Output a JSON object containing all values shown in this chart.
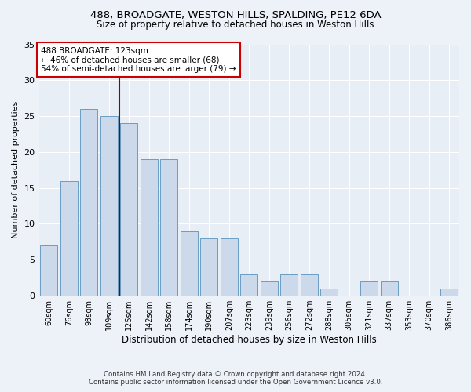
{
  "title1": "488, BROADGATE, WESTON HILLS, SPALDING, PE12 6DA",
  "title2": "Size of property relative to detached houses in Weston Hills",
  "xlabel": "Distribution of detached houses by size in Weston Hills",
  "ylabel": "Number of detached properties",
  "categories": [
    "60sqm",
    "76sqm",
    "93sqm",
    "109sqm",
    "125sqm",
    "142sqm",
    "158sqm",
    "174sqm",
    "190sqm",
    "207sqm",
    "223sqm",
    "239sqm",
    "256sqm",
    "272sqm",
    "288sqm",
    "305sqm",
    "321sqm",
    "337sqm",
    "353sqm",
    "370sqm",
    "386sqm"
  ],
  "values": [
    7,
    16,
    26,
    25,
    24,
    19,
    19,
    9,
    8,
    8,
    3,
    2,
    3,
    3,
    1,
    0,
    2,
    2,
    0,
    0,
    1
  ],
  "bar_color": "#ccd9ea",
  "bar_edge_color": "#6a9cc2",
  "vline_x": 4.0,
  "vline_color": "#8b0000",
  "annotation_text": "488 BROADGATE: 123sqm\n← 46% of detached houses are smaller (68)\n54% of semi-detached houses are larger (79) →",
  "annotation_box_color": "#ffffff",
  "annotation_box_edge_color": "#cc0000",
  "ylim": [
    0,
    35
  ],
  "yticks": [
    0,
    5,
    10,
    15,
    20,
    25,
    30,
    35
  ],
  "footer1": "Contains HM Land Registry data © Crown copyright and database right 2024.",
  "footer2": "Contains public sector information licensed under the Open Government Licence v3.0.",
  "bg_color": "#edf2f9",
  "plot_bg_color": "#e8eef6"
}
